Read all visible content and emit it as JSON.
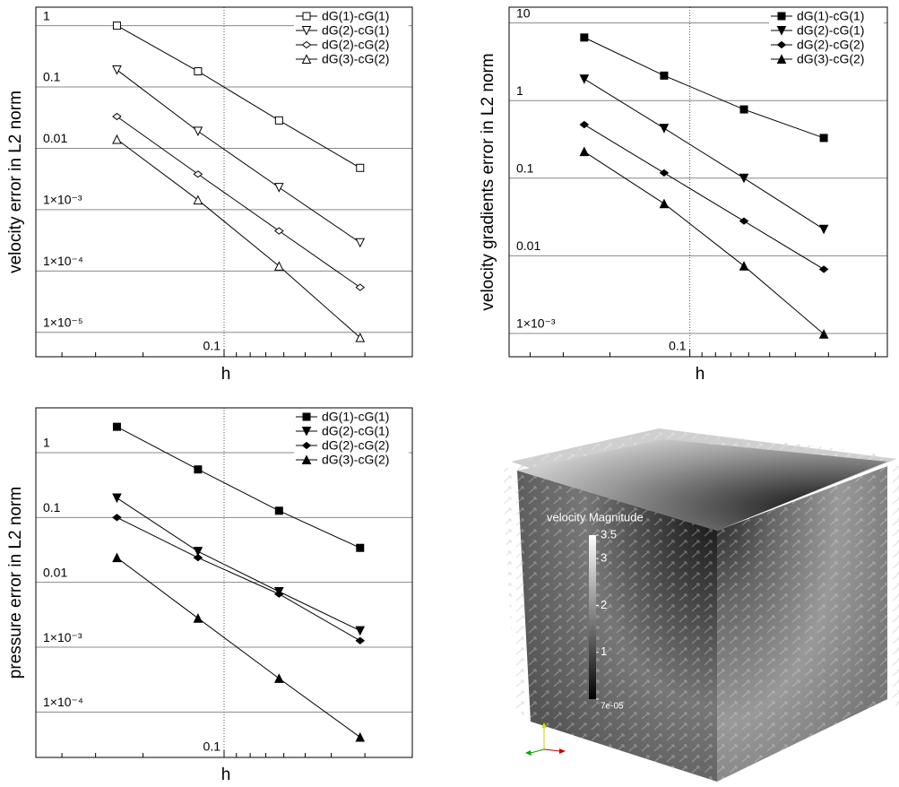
{
  "chart_data": [
    {
      "type": "line",
      "y_label": "velocity error in L2 norm",
      "x_label": "h",
      "log_x": true,
      "log_y": true,
      "grid": true,
      "legend": "upper right",
      "marker_fill": "open",
      "x": [
        0.25,
        0.125,
        0.0625,
        0.03125
      ],
      "xlim": [
        0.5,
        0.02
      ],
      "xticks": [
        0.1
      ],
      "ylim": [
        4e-06,
        2
      ],
      "yticks": [
        1,
        0.1,
        0.01,
        {
          "value": 0.001,
          "label": "1×10⁻³"
        },
        {
          "value": 0.0001,
          "label": "1×10⁻⁴"
        },
        {
          "value": 1e-05,
          "label": "1×10⁻⁵"
        }
      ],
      "series": [
        {
          "name": "dG(1)-cG(1)",
          "color": "#000000",
          "marker": "square",
          "values": [
            1,
            0.18,
            0.0285,
            0.0048
          ]
        },
        {
          "name": "dG(2)-cG(1)",
          "color": "#000000",
          "marker": "triangle-down",
          "values": [
            0.19,
            0.019,
            0.0023,
            0.00029
          ]
        },
        {
          "name": "dG(2)-cG(2)",
          "color": "#000000",
          "marker": "diamond",
          "values": [
            0.033,
            0.0038,
            0.00045,
            5.4e-05
          ]
        },
        {
          "name": "dG(3)-cG(2)",
          "color": "#000000",
          "marker": "triangle-up",
          "values": [
            0.014,
            0.00144,
            0.00012,
            8.2e-06
          ]
        }
      ]
    },
    {
      "type": "line",
      "y_label": "velocity gradients error in L2 norm",
      "x_label": "h",
      "log_x": true,
      "log_y": true,
      "grid": true,
      "legend": "upper right",
      "marker_fill": "filled",
      "x": [
        0.25,
        0.125,
        0.0625,
        0.03125
      ],
      "xlim": [
        0.48,
        0.018
      ],
      "xticks": [
        0.1
      ],
      "ylim": [
        0.0005,
        16
      ],
      "yticks": [
        10,
        1,
        0.1,
        0.01,
        {
          "value": 0.001,
          "label": "1×10⁻³"
        }
      ],
      "series": [
        {
          "name": "dG(1)-cG(1)",
          "color": "#000000",
          "marker": "square",
          "values": [
            6.5,
            2.1,
            0.77,
            0.33
          ]
        },
        {
          "name": "dG(2)-cG(1)",
          "color": "#000000",
          "marker": "triangle-down",
          "values": [
            1.9,
            0.44,
            0.1,
            0.022
          ]
        },
        {
          "name": "dG(2)-cG(2)",
          "color": "#000000",
          "marker": "diamond",
          "values": [
            0.49,
            0.117,
            0.028,
            0.0067
          ]
        },
        {
          "name": "dG(3)-cG(2)",
          "color": "#000000",
          "marker": "triangle-up",
          "values": [
            0.22,
            0.047,
            0.0074,
            0.00098
          ]
        }
      ]
    },
    {
      "type": "line",
      "y_label": "pressure error in L2 norm",
      "x_label": "h",
      "log_x": true,
      "log_y": true,
      "grid": true,
      "legend": "upper right",
      "marker_fill": "filled",
      "x": [
        0.25,
        0.125,
        0.0625,
        0.03125
      ],
      "xlim": [
        0.5,
        0.02
      ],
      "xticks": [
        0.1
      ],
      "ylim": [
        2e-05,
        4.9
      ],
      "yticks": [
        1,
        0.1,
        0.01,
        {
          "value": 0.001,
          "label": "1×10⁻³"
        },
        {
          "value": 0.0001,
          "label": "1×10⁻⁴"
        }
      ],
      "series": [
        {
          "name": "dG(1)-cG(1)",
          "color": "#000000",
          "marker": "square",
          "values": [
            2.5,
            0.55,
            0.127,
            0.034
          ]
        },
        {
          "name": "dG(2)-cG(1)",
          "color": "#000000",
          "marker": "triangle-down",
          "values": [
            0.2,
            0.03,
            0.0072,
            0.0018
          ]
        },
        {
          "name": "dG(2)-cG(2)",
          "color": "#000000",
          "marker": "diamond",
          "values": [
            0.1,
            0.024,
            0.0066,
            0.00126
          ]
        },
        {
          "name": "dG(3)-cG(2)",
          "color": "#000000",
          "marker": "triangle-up",
          "values": [
            0.024,
            0.0028,
            0.00033,
            4.1e-05
          ]
        }
      ]
    },
    {
      "type": "colorbar",
      "title": "velocity Magnitude",
      "ylim": [
        0,
        3.5
      ],
      "yticks": [
        {
          "value": 7e-05,
          "label": "7e-05"
        },
        1,
        2,
        3,
        3.5
      ]
    }
  ]
}
